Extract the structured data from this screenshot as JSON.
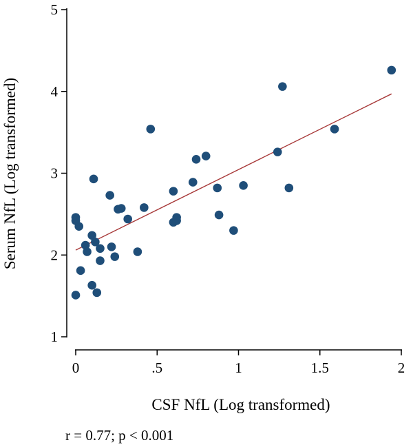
{
  "chart_data": {
    "type": "scatter",
    "xlabel": "CSF NfL (Log transformed)",
    "ylabel": "Serum NfL (Log transformed)",
    "annotation": "r = 0.77; p < 0.001",
    "xlim": [
      0,
      2
    ],
    "ylim": [
      1,
      5
    ],
    "x_ticks": [
      0,
      0.5,
      1,
      1.5,
      2
    ],
    "x_tick_labels": [
      "0",
      ".5",
      "1",
      "1.5",
      "2"
    ],
    "y_ticks": [
      1,
      2,
      3,
      4,
      5
    ],
    "y_tick_labels": [
      "1",
      "2",
      "3",
      "4",
      "5"
    ],
    "grid": false,
    "colors": {
      "points": "#1f4e79",
      "fit_line": "#a83a3a",
      "axes": "#000000"
    },
    "points": [
      {
        "x": 0.0,
        "y": 2.46
      },
      {
        "x": 0.0,
        "y": 2.42
      },
      {
        "x": 0.0,
        "y": 1.51
      },
      {
        "x": 0.02,
        "y": 2.35
      },
      {
        "x": 0.03,
        "y": 1.81
      },
      {
        "x": 0.06,
        "y": 2.12
      },
      {
        "x": 0.07,
        "y": 2.04
      },
      {
        "x": 0.1,
        "y": 2.24
      },
      {
        "x": 0.1,
        "y": 1.63
      },
      {
        "x": 0.11,
        "y": 2.93
      },
      {
        "x": 0.12,
        "y": 2.16
      },
      {
        "x": 0.13,
        "y": 1.54
      },
      {
        "x": 0.15,
        "y": 2.08
      },
      {
        "x": 0.15,
        "y": 1.93
      },
      {
        "x": 0.21,
        "y": 2.73
      },
      {
        "x": 0.22,
        "y": 2.1
      },
      {
        "x": 0.24,
        "y": 1.98
      },
      {
        "x": 0.26,
        "y": 2.56
      },
      {
        "x": 0.28,
        "y": 2.57
      },
      {
        "x": 0.32,
        "y": 2.44
      },
      {
        "x": 0.38,
        "y": 2.04
      },
      {
        "x": 0.42,
        "y": 2.58
      },
      {
        "x": 0.46,
        "y": 3.54
      },
      {
        "x": 0.6,
        "y": 2.4
      },
      {
        "x": 0.6,
        "y": 2.78
      },
      {
        "x": 0.62,
        "y": 2.46
      },
      {
        "x": 0.62,
        "y": 2.42
      },
      {
        "x": 0.72,
        "y": 2.89
      },
      {
        "x": 0.74,
        "y": 3.17
      },
      {
        "x": 0.8,
        "y": 3.21
      },
      {
        "x": 0.87,
        "y": 2.82
      },
      {
        "x": 0.88,
        "y": 2.49
      },
      {
        "x": 0.97,
        "y": 2.3
      },
      {
        "x": 1.03,
        "y": 2.85
      },
      {
        "x": 1.24,
        "y": 3.26
      },
      {
        "x": 1.27,
        "y": 4.06
      },
      {
        "x": 1.31,
        "y": 2.82
      },
      {
        "x": 1.59,
        "y": 3.54
      },
      {
        "x": 1.94,
        "y": 4.26
      }
    ],
    "fit_line": {
      "x": [
        0.0,
        1.94
      ],
      "y": [
        2.06,
        3.97
      ]
    }
  }
}
